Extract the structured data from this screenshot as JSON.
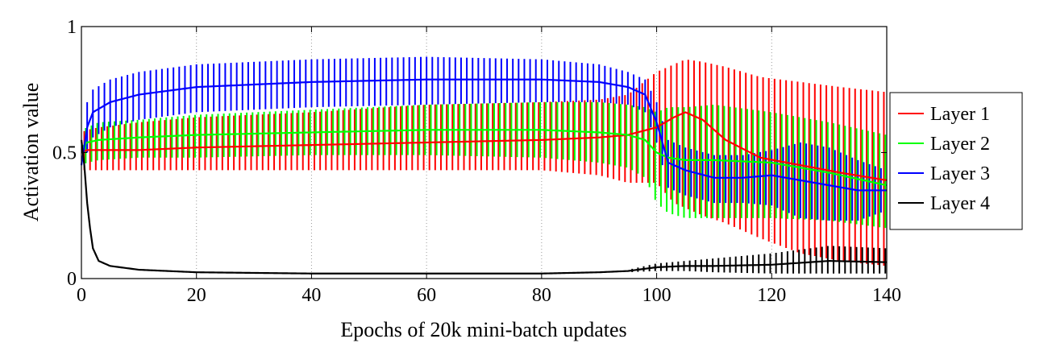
{
  "chart_data": {
    "type": "line",
    "title": "",
    "xlabel": "Epochs of 20k mini-batch updates",
    "ylabel": "Activation value",
    "xlim": [
      0,
      140
    ],
    "ylim": [
      0,
      1
    ],
    "x_ticks": [
      0,
      20,
      40,
      60,
      80,
      100,
      120,
      140
    ],
    "x_tick_labels": [
      "0",
      "20",
      "40",
      "60",
      "80",
      "100",
      "120",
      "140"
    ],
    "y_ticks": [
      0,
      0.5,
      1
    ],
    "y_tick_labels": [
      "0",
      "0.5",
      "1"
    ],
    "grid": "vertical dotted",
    "legend_position": "right",
    "error_bars": true,
    "series": [
      {
        "name": "Layer 1",
        "color": "#ff0000",
        "x": [
          0,
          1,
          3,
          10,
          20,
          40,
          60,
          80,
          90,
          95,
          100,
          103,
          105,
          108,
          112,
          118,
          125,
          132,
          140
        ],
        "mean": [
          0.5,
          0.51,
          0.51,
          0.51,
          0.52,
          0.53,
          0.54,
          0.55,
          0.56,
          0.57,
          0.6,
          0.64,
          0.66,
          0.63,
          0.55,
          0.48,
          0.45,
          0.42,
          0.39
        ],
        "upper": [
          0.58,
          0.59,
          0.6,
          0.62,
          0.64,
          0.66,
          0.69,
          0.7,
          0.71,
          0.73,
          0.82,
          0.85,
          0.87,
          0.86,
          0.84,
          0.8,
          0.78,
          0.76,
          0.74
        ],
        "lower": [
          0.43,
          0.43,
          0.43,
          0.43,
          0.43,
          0.43,
          0.43,
          0.43,
          0.41,
          0.38,
          0.38,
          0.3,
          0.28,
          0.25,
          0.22,
          0.16,
          0.1,
          0.07,
          0.05
        ]
      },
      {
        "name": "Layer 2",
        "color": "#00ff00",
        "x": [
          0,
          1,
          3,
          10,
          20,
          40,
          60,
          80,
          90,
          95,
          98,
          100,
          102,
          105,
          110,
          120,
          130,
          140
        ],
        "mean": [
          0.52,
          0.54,
          0.55,
          0.56,
          0.57,
          0.58,
          0.59,
          0.59,
          0.58,
          0.57,
          0.55,
          0.5,
          0.48,
          0.47,
          0.47,
          0.46,
          0.42,
          0.37
        ],
        "upper": [
          0.59,
          0.6,
          0.62,
          0.63,
          0.65,
          0.67,
          0.69,
          0.7,
          0.7,
          0.69,
          0.68,
          0.66,
          0.68,
          0.68,
          0.69,
          0.66,
          0.62,
          0.57
        ],
        "lower": [
          0.45,
          0.46,
          0.47,
          0.48,
          0.48,
          0.49,
          0.49,
          0.48,
          0.46,
          0.44,
          0.4,
          0.3,
          0.26,
          0.24,
          0.24,
          0.24,
          0.23,
          0.2
        ]
      },
      {
        "name": "Layer 3",
        "color": "#0000ff",
        "x": [
          0,
          1,
          2,
          5,
          10,
          20,
          40,
          60,
          80,
          90,
          95,
          98,
          100,
          102,
          105,
          110,
          115,
          120,
          125,
          130,
          135,
          140
        ],
        "mean": [
          0.45,
          0.6,
          0.66,
          0.7,
          0.73,
          0.76,
          0.78,
          0.79,
          0.79,
          0.78,
          0.76,
          0.73,
          0.62,
          0.46,
          0.43,
          0.4,
          0.4,
          0.41,
          0.39,
          0.37,
          0.35,
          0.35
        ],
        "upper": [
          0.58,
          0.7,
          0.75,
          0.79,
          0.82,
          0.85,
          0.87,
          0.88,
          0.87,
          0.85,
          0.82,
          0.79,
          0.7,
          0.55,
          0.52,
          0.49,
          0.49,
          0.51,
          0.54,
          0.52,
          0.47,
          0.43
        ],
        "lower": [
          0.4,
          0.5,
          0.56,
          0.6,
          0.63,
          0.66,
          0.68,
          0.69,
          0.7,
          0.7,
          0.69,
          0.66,
          0.54,
          0.36,
          0.33,
          0.3,
          0.3,
          0.29,
          0.24,
          0.23,
          0.23,
          0.27
        ]
      },
      {
        "name": "Layer 4",
        "color": "#000000",
        "x": [
          0,
          0.5,
          1,
          1.5,
          2,
          3,
          5,
          10,
          20,
          40,
          60,
          80,
          90,
          95,
          100,
          105,
          110,
          120,
          130,
          140
        ],
        "mean": [
          0.55,
          0.45,
          0.3,
          0.2,
          0.12,
          0.07,
          0.05,
          0.035,
          0.025,
          0.02,
          0.02,
          0.02,
          0.025,
          0.03,
          0.045,
          0.05,
          0.05,
          0.055,
          0.07,
          0.065
        ],
        "upper": [
          0.58,
          0.48,
          0.33,
          0.22,
          0.14,
          0.08,
          0.055,
          0.04,
          0.03,
          0.025,
          0.025,
          0.025,
          0.03,
          0.035,
          0.06,
          0.07,
          0.08,
          0.1,
          0.13,
          0.12
        ],
        "lower": [
          0.5,
          0.42,
          0.27,
          0.18,
          0.1,
          0.06,
          0.045,
          0.03,
          0.02,
          0.015,
          0.015,
          0.015,
          0.02,
          0.025,
          0.03,
          0.03,
          0.025,
          0.02,
          0.02,
          0.02
        ]
      }
    ]
  }
}
